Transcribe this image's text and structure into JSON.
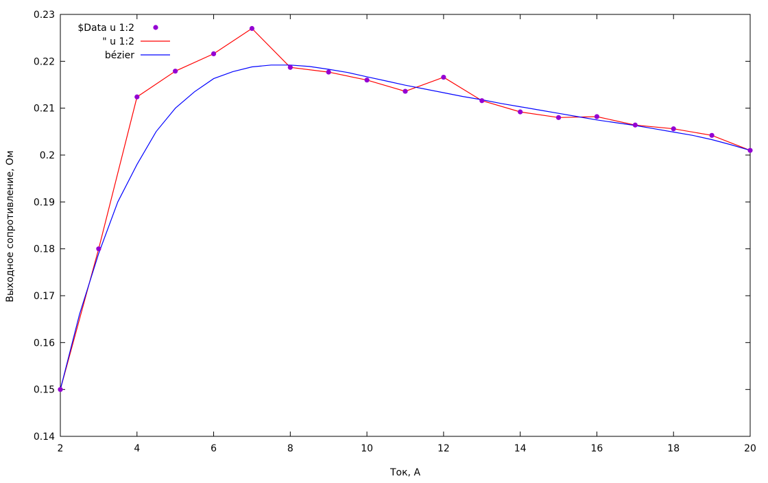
{
  "chart_data": {
    "type": "line",
    "xlabel": "Ток, А",
    "ylabel": "Выходное сопротивление, Ом",
    "xlim": [
      2,
      20
    ],
    "ylim": [
      0.14,
      0.23
    ],
    "xticks": [
      2,
      4,
      6,
      8,
      10,
      12,
      14,
      16,
      18,
      20
    ],
    "yticks": [
      0.14,
      0.15,
      0.16,
      0.17,
      0.18,
      0.19,
      0.2,
      0.21,
      0.22,
      0.23
    ],
    "ytick_labels": [
      "0.14",
      "0.15",
      "0.16",
      "0.17",
      "0.18",
      "0.19",
      "0.2",
      "0.21",
      "0.22",
      "0.23"
    ],
    "grid": false,
    "legend_position": "top-left",
    "series": [
      {
        "name": "$Data u 1:2",
        "style": "points",
        "color": "#9400d3",
        "x": [
          2,
          3,
          4,
          5,
          6,
          7,
          8,
          9,
          10,
          11,
          12,
          13,
          14,
          15,
          16,
          17,
          18,
          19,
          20
        ],
        "y": [
          0.15,
          0.18,
          0.2124,
          0.2179,
          0.2216,
          0.227,
          0.2187,
          0.2177,
          0.216,
          0.2136,
          0.2166,
          0.2116,
          0.2092,
          0.208,
          0.2082,
          0.2064,
          0.2056,
          0.2042,
          0.201
        ]
      },
      {
        "name": "\" u 1:2",
        "style": "line",
        "color": "#ff0000",
        "x": [
          2,
          3,
          4,
          5,
          6,
          7,
          8,
          9,
          10,
          11,
          12,
          13,
          14,
          15,
          16,
          17,
          18,
          19,
          20
        ],
        "y": [
          0.15,
          0.18,
          0.2124,
          0.2179,
          0.2216,
          0.227,
          0.2187,
          0.2177,
          0.216,
          0.2136,
          0.2166,
          0.2116,
          0.2092,
          0.208,
          0.2082,
          0.2064,
          0.2056,
          0.2042,
          0.201
        ]
      },
      {
        "name": "bézier",
        "style": "smooth",
        "color": "#0000ff",
        "x": [
          2,
          2.5,
          3,
          3.5,
          4,
          4.5,
          5,
          5.5,
          6,
          6.5,
          7,
          7.5,
          8,
          8.5,
          9,
          9.5,
          10,
          10.5,
          11,
          11.5,
          12,
          12.5,
          13,
          13.5,
          14,
          14.5,
          15,
          15.5,
          16,
          16.5,
          17,
          17.5,
          18,
          18.5,
          19,
          19.5,
          20
        ],
        "y": [
          0.15,
          0.166,
          0.179,
          0.19,
          0.198,
          0.205,
          0.21,
          0.2135,
          0.2163,
          0.2178,
          0.2188,
          0.2192,
          0.2192,
          0.2189,
          0.2183,
          0.2176,
          0.2167,
          0.2158,
          0.2149,
          0.2141,
          0.2133,
          0.2125,
          0.2118,
          0.211,
          0.2103,
          0.2096,
          0.2089,
          0.2082,
          0.2075,
          0.2069,
          0.2063,
          0.2056,
          0.2049,
          0.2042,
          0.2033,
          0.2022,
          0.201
        ]
      }
    ]
  }
}
